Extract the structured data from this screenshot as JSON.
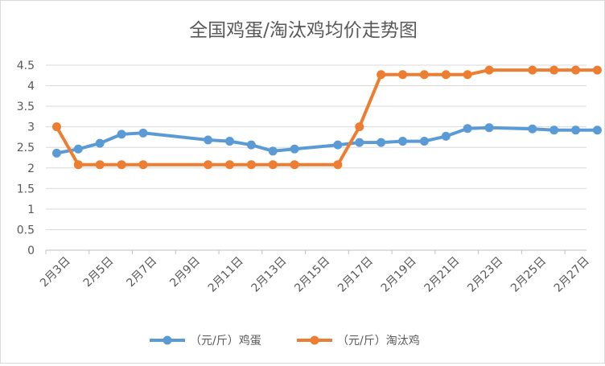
{
  "chart_data": {
    "type": "line",
    "title": "全国鸡蛋/淘汰鸡均价走势图",
    "xlabel": "",
    "ylabel": "",
    "x_positions": [
      1,
      2,
      3,
      4,
      5,
      8,
      9,
      10,
      11,
      12,
      14,
      15,
      16,
      17,
      18,
      19,
      20,
      21,
      23,
      24,
      25,
      26
    ],
    "x_tick_labels": [
      "2月3日",
      "2月5日",
      "2月7日",
      "2月9日",
      "2月11日",
      "2月13日",
      "2月15日",
      "2月17日",
      "2月19日",
      "2月21日",
      "2月23日",
      "2月25日",
      "2月27日"
    ],
    "ylim": [
      0,
      4.5
    ],
    "y_ticks": [
      "0",
      "0.5",
      "1",
      "1.5",
      "2",
      "2.5",
      "3",
      "3.5",
      "4",
      "4.5"
    ],
    "grid": "horizontal",
    "legend_position": "bottom",
    "series": [
      {
        "name": "（元/斤）鸡蛋",
        "color": "#5b9bd5",
        "values": [
          2.36,
          2.46,
          2.6,
          2.82,
          2.85,
          2.68,
          2.65,
          2.56,
          2.41,
          2.46,
          2.56,
          2.62,
          2.62,
          2.65,
          2.65,
          2.77,
          2.96,
          2.98,
          2.95,
          2.92,
          2.92,
          2.92
        ]
      },
      {
        "name": "（元/斤）淘汰鸡",
        "color": "#ed7d31",
        "values": [
          3.0,
          2.08,
          2.08,
          2.08,
          2.08,
          2.08,
          2.08,
          2.08,
          2.08,
          2.08,
          2.08,
          3.0,
          4.27,
          4.27,
          4.27,
          4.27,
          4.27,
          4.38,
          4.38,
          4.38,
          4.38,
          4.38
        ]
      }
    ]
  }
}
